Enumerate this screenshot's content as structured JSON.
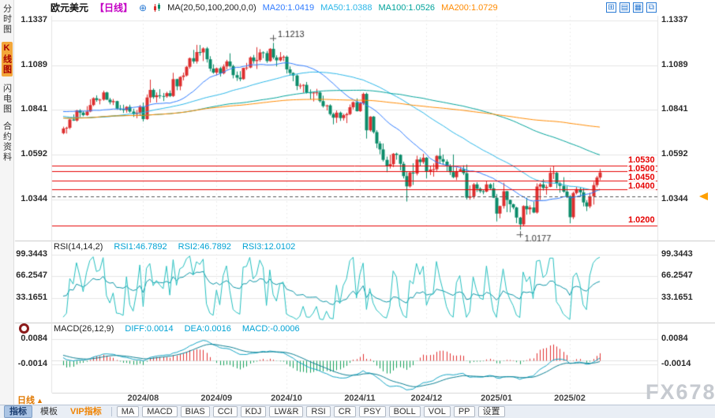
{
  "app": {
    "watermark": "FX678"
  },
  "sidebar": {
    "items": [
      {
        "label": "分时图",
        "active": false
      },
      {
        "label": "K线图",
        "active": true
      },
      {
        "label": "闪电图",
        "active": false
      },
      {
        "label": "合约资料",
        "active": false
      }
    ]
  },
  "header": {
    "symbol": "欧元美元",
    "period": "【日线】",
    "add_icon": "⊕",
    "ma_label": "MA(20,50,100,200,0,0)",
    "ma20": "MA20:1.0419",
    "ma50": "MA50:1.0388",
    "ma100": "MA100:1.0526",
    "ma200": "MA200:1.0729",
    "colors": {
      "ma20": "#2f7bff",
      "ma50": "#29b6e8",
      "ma100": "#00a39b",
      "ma200": "#ff8a00",
      "period": "#c400c4"
    }
  },
  "top_icons": [
    {
      "name": "layout-grid-icon",
      "glyph": "⊞"
    },
    {
      "name": "layout-rows-icon",
      "glyph": "▤"
    },
    {
      "name": "layout-table-icon",
      "glyph": "▦"
    },
    {
      "name": "layout-windows-icon",
      "glyph": "⧉"
    }
  ],
  "rsi_header": {
    "title": "RSI(14,14,2)",
    "rsi1": "RSI1:46.7892",
    "rsi2": "RSI2:46.7892",
    "rsi3": "RSI3:12.0102"
  },
  "macd_header": {
    "title": "MACD(26,12,9)",
    "diff": "DIFF:0.0014",
    "dea": "DEA:0.0016",
    "macd": "MACD:-0.0006"
  },
  "axes": {
    "main_ticks": [
      "1.1337",
      "1.1089",
      "1.0841",
      "1.0592",
      "1.0344"
    ],
    "rsi_ticks": [
      "99.3443",
      "66.2547",
      "33.1651"
    ],
    "macd_ticks": [
      "0.0084",
      "-0.0014"
    ]
  },
  "annotations": {
    "high": "1.1213",
    "low": "1.0177"
  },
  "levels_text": [
    "1.0530",
    "1.0500",
    "1.0450",
    "1.0400",
    "1.0200"
  ],
  "footer": {
    "period_label": "日线",
    "period_arrow": "▲",
    "tabs": [
      {
        "label": "指标",
        "active": true
      },
      {
        "label": "模板",
        "active": false
      },
      {
        "label": "VIP指标",
        "vip": true
      }
    ],
    "buttons": [
      "MA",
      "MACD",
      "BIAS",
      "CCI",
      "KDJ",
      "LW&R",
      "RSI",
      "CR",
      "PSY",
      "BOLL",
      "VOL",
      "PP",
      "设置"
    ]
  },
  "chart_data": {
    "type": "candlestick",
    "title": "欧元美元 日线 (EUR/USD Daily) with MA(20,50,100,200), RSI(14,14,2), MACD(26,12,9)",
    "y_ticks": [
      1.1337,
      1.1089,
      1.0841,
      1.0592,
      1.0344
    ],
    "rsi_ticks": [
      99.3443,
      66.2547,
      33.1651
    ],
    "macd_ticks": [
      0.0084,
      -0.0014
    ],
    "levels": [
      1.053,
      1.05,
      1.045,
      1.04,
      1.02
    ],
    "dashed_level": 1.036,
    "high_point": 1.1213,
    "low_point": 1.0177,
    "ma_periods": [
      20,
      50,
      100,
      200
    ],
    "ma_colors": [
      "#2f7bff",
      "#29b6e8",
      "#00a39b",
      "#ff8a00"
    ],
    "rsi_periods": [
      14,
      2
    ],
    "rsi_colors": [
      "#0d95a6",
      "#25bfbf"
    ],
    "macd_params": [
      26,
      12,
      9
    ],
    "macd_colors": {
      "diff": "#15a4c4",
      "dea": "#0c7f92",
      "up": "#e03030",
      "down": "#13a05a"
    },
    "candle_colors": {
      "up": "#dd2f2f",
      "down": "#0b8c6a"
    },
    "month_ticks": [
      {
        "label": "2024/08",
        "index": 24
      },
      {
        "label": "2024/09",
        "index": 46
      },
      {
        "label": "2024/10",
        "index": 67
      },
      {
        "label": "2024/11",
        "index": 89
      },
      {
        "label": "2024/12",
        "index": 109
      },
      {
        "label": "2025/01",
        "index": 130
      },
      {
        "label": "2025/02",
        "index": 152
      }
    ],
    "history_closes": [
      1.0765,
      1.0772,
      1.0788,
      1.0741,
      1.0722,
      1.0708,
      1.0716,
      1.0734,
      1.0748,
      1.0782,
      1.0818,
      1.0866,
      1.0882,
      1.087,
      1.0858,
      1.0846,
      1.0838,
      1.0852,
      1.084,
      1.0816,
      1.0885,
      1.0896,
      1.0872,
      1.086,
      1.0812,
      1.074,
      1.0735,
      1.0742,
      1.0738,
      1.073,
      1.0705,
      1.0738,
      1.0742,
      1.0736,
      1.0714,
      1.0688,
      1.0702,
      1.0696,
      1.0734,
      1.0756,
      1.0748,
      1.0752,
      1.077,
      1.0784,
      1.0802,
      1.0822,
      1.0816,
      1.0828,
      1.0846,
      1.084,
      1.0896,
      1.0902,
      1.0888,
      1.0874,
      1.0858,
      1.0842,
      1.085,
      1.0836,
      1.0848,
      1.0852
    ],
    "candles": [
      [
        1.0712,
        1.0748,
        1.0706,
        1.0738
      ],
      [
        1.0738,
        1.0748,
        1.071,
        1.0742
      ],
      [
        1.0742,
        1.0792,
        1.0734,
        1.0788
      ],
      [
        1.0788,
        1.0816,
        1.078,
        1.0782
      ],
      [
        1.0782,
        1.0842,
        1.0776,
        1.0838
      ],
      [
        1.0838,
        1.0845,
        1.0802,
        1.0826
      ],
      [
        1.0826,
        1.0834,
        1.0806,
        1.0812
      ],
      [
        1.0812,
        1.0862,
        1.0808,
        1.0832
      ],
      [
        1.0832,
        1.09,
        1.0828,
        1.0868
      ],
      [
        1.0868,
        1.0911,
        1.0862,
        1.0906
      ],
      [
        1.0906,
        1.0922,
        1.0886,
        1.0896
      ],
      [
        1.0896,
        1.0904,
        1.0872,
        1.0898
      ],
      [
        1.0898,
        1.0948,
        1.0892,
        1.0938
      ],
      [
        1.0938,
        1.0942,
        1.0896,
        1.0898
      ],
      [
        1.0898,
        1.0908,
        1.0872,
        1.0884
      ],
      [
        1.0884,
        1.0902,
        1.0868,
        1.089
      ],
      [
        1.089,
        1.0892,
        1.0842,
        1.0848
      ],
      [
        1.0848,
        1.0868,
        1.0838,
        1.0846
      ],
      [
        1.0846,
        1.087,
        1.0824,
        1.084
      ],
      [
        1.084,
        1.0862,
        1.0826,
        1.0858
      ],
      [
        1.0858,
        1.087,
        1.0825,
        1.0832
      ],
      [
        1.0832,
        1.0848,
        1.0802,
        1.0818
      ],
      [
        1.0818,
        1.084,
        1.0795,
        1.0826
      ],
      [
        1.0826,
        1.0868,
        1.081,
        1.0858
      ],
      [
        1.0858,
        1.0882,
        1.0777,
        1.079
      ],
      [
        1.079,
        1.0927,
        1.0786,
        1.091
      ],
      [
        1.091,
        1.1009,
        1.0881,
        1.0952
      ],
      [
        1.0952,
        1.096,
        1.0903,
        1.0912
      ],
      [
        1.0912,
        1.0938,
        1.0882,
        1.0922
      ],
      [
        1.0922,
        1.0956,
        1.0904,
        1.0918
      ],
      [
        1.0918,
        1.0935,
        1.089,
        1.0916
      ],
      [
        1.0916,
        1.0942,
        1.0908,
        1.0934
      ],
      [
        1.0934,
        1.0949,
        1.0912,
        1.0918
      ],
      [
        1.0918,
        1.1047,
        1.0913,
        1.1012
      ],
      [
        1.1012,
        1.1014,
        1.095,
        1.0972
      ],
      [
        1.0972,
        1.1028,
        1.095,
        1.1024
      ],
      [
        1.1024,
        1.1048,
        1.1005,
        1.1032
      ],
      [
        1.1032,
        1.1085,
        1.1026,
        1.108
      ],
      [
        1.108,
        1.1132,
        1.107,
        1.1128
      ],
      [
        1.1128,
        1.1174,
        1.1098,
        1.111
      ],
      [
        1.111,
        1.1202,
        1.1098,
        1.1162
      ],
      [
        1.1162,
        1.1201,
        1.1142,
        1.116
      ],
      [
        1.116,
        1.1188,
        1.1112,
        1.1182
      ],
      [
        1.1182,
        1.119,
        1.1104,
        1.1122
      ],
      [
        1.1122,
        1.1139,
        1.1055,
        1.107
      ],
      [
        1.107,
        1.1094,
        1.1042,
        1.1048
      ],
      [
        1.1048,
        1.1076,
        1.1034,
        1.1072
      ],
      [
        1.1072,
        1.108,
        1.1026,
        1.1044
      ],
      [
        1.1044,
        1.1094,
        1.1038,
        1.1082
      ],
      [
        1.1082,
        1.1119,
        1.1065,
        1.111
      ],
      [
        1.111,
        1.1155,
        1.1076,
        1.1084
      ],
      [
        1.1084,
        1.1092,
        1.1016,
        1.1034
      ],
      [
        1.1034,
        1.1054,
        1.1002,
        1.102
      ],
      [
        1.102,
        1.1056,
        1.1,
        1.1012
      ],
      [
        1.1012,
        1.1075,
        1.1008,
        1.1074
      ],
      [
        1.1074,
        1.1102,
        1.1062,
        1.1076
      ],
      [
        1.1076,
        1.1138,
        1.1072,
        1.1132
      ],
      [
        1.1132,
        1.1146,
        1.1098,
        1.1112
      ],
      [
        1.1112,
        1.1189,
        1.1068,
        1.1118
      ],
      [
        1.1118,
        1.1178,
        1.1108,
        1.116
      ],
      [
        1.116,
        1.1166,
        1.1128,
        1.1156
      ],
      [
        1.1156,
        1.1168,
        1.1102,
        1.1112
      ],
      [
        1.1112,
        1.1184,
        1.1108,
        1.118
      ],
      [
        1.118,
        1.1213,
        1.1122,
        1.1132
      ],
      [
        1.1132,
        1.1144,
        1.1082,
        1.1116
      ],
      [
        1.1116,
        1.1162,
        1.111,
        1.1134
      ],
      [
        1.1134,
        1.1144,
        1.1112,
        1.1136
      ],
      [
        1.1136,
        1.1143,
        1.1043,
        1.1066
      ],
      [
        1.1066,
        1.1082,
        1.1032,
        1.1046
      ],
      [
        1.1046,
        1.105,
        1.1,
        1.1032
      ],
      [
        1.1032,
        1.1038,
        1.0951,
        1.0974
      ],
      [
        1.0974,
        1.0988,
        1.0958,
        1.0976
      ],
      [
        1.0976,
        1.0984,
        1.0936,
        1.098
      ],
      [
        1.098,
        1.0996,
        1.0932,
        1.0938
      ],
      [
        1.0938,
        1.0955,
        1.09,
        1.0936
      ],
      [
        1.0936,
        1.0942,
        1.0888,
        1.0937
      ],
      [
        1.0937,
        1.0958,
        1.092,
        1.0938
      ],
      [
        1.0938,
        1.0944,
        1.0882,
        1.089
      ],
      [
        1.089,
        1.092,
        1.0854,
        1.0862
      ],
      [
        1.0862,
        1.087,
        1.0838,
        1.0866
      ],
      [
        1.0866,
        1.0872,
        1.081,
        1.0818
      ],
      [
        1.0818,
        1.0826,
        1.0761,
        1.0798
      ],
      [
        1.0798,
        1.0838,
        1.0769,
        1.0826
      ],
      [
        1.0826,
        1.0832,
        1.078,
        1.0796
      ],
      [
        1.0796,
        1.082,
        1.0782,
        1.0812
      ],
      [
        1.0812,
        1.0826,
        1.0768,
        1.0818
      ],
      [
        1.0818,
        1.0871,
        1.0812,
        1.0856
      ],
      [
        1.0856,
        1.0888,
        1.0844,
        1.0884
      ],
      [
        1.0884,
        1.0905,
        1.0832,
        1.0834
      ],
      [
        1.0834,
        1.0886,
        1.083,
        1.0878
      ],
      [
        1.0878,
        1.0937,
        1.0868,
        1.093
      ],
      [
        1.093,
        1.0937,
        1.0682,
        1.0728
      ],
      [
        1.0728,
        1.0806,
        1.0721,
        1.0804
      ],
      [
        1.0804,
        1.0807,
        1.071,
        1.0718
      ],
      [
        1.0718,
        1.0728,
        1.0629,
        1.0655
      ],
      [
        1.0655,
        1.0667,
        1.0595,
        1.0622
      ],
      [
        1.0622,
        1.0655,
        1.0555,
        1.0564
      ],
      [
        1.0564,
        1.0582,
        1.0496,
        1.053
      ],
      [
        1.053,
        1.0592,
        1.0516,
        1.054
      ],
      [
        1.054,
        1.0602,
        1.0524,
        1.0598
      ],
      [
        1.0598,
        1.0604,
        1.0565,
        1.0592
      ],
      [
        1.0592,
        1.0595,
        1.0506,
        1.0542
      ],
      [
        1.0542,
        1.0554,
        1.0461,
        1.0474
      ],
      [
        1.0474,
        1.05,
        1.0333,
        1.0417
      ],
      [
        1.0417,
        1.05,
        1.041,
        1.0494
      ],
      [
        1.0494,
        1.0545,
        1.0425,
        1.0488
      ],
      [
        1.0488,
        1.0587,
        1.0478,
        1.0566
      ],
      [
        1.0566,
        1.0578,
        1.053,
        1.0552
      ],
      [
        1.0552,
        1.0598,
        1.0542,
        1.0576
      ],
      [
        1.0576,
        1.058,
        1.0461,
        1.0498
      ],
      [
        1.0498,
        1.0532,
        1.048,
        1.051
      ],
      [
        1.051,
        1.0544,
        1.0471,
        1.0512
      ],
      [
        1.0512,
        1.059,
        1.0502,
        1.0586
      ],
      [
        1.0586,
        1.0629,
        1.0541,
        1.0568
      ],
      [
        1.0568,
        1.0594,
        1.0536,
        1.0554
      ],
      [
        1.0554,
        1.0566,
        1.0499,
        1.0528
      ],
      [
        1.0528,
        1.054,
        1.048,
        1.0496
      ],
      [
        1.0496,
        1.0594,
        1.0462,
        1.0468
      ],
      [
        1.0468,
        1.0522,
        1.0452,
        1.0502
      ],
      [
        1.0502,
        1.0525,
        1.0498,
        1.0512
      ],
      [
        1.0512,
        1.0534,
        1.048,
        1.049
      ],
      [
        1.049,
        1.0538,
        1.0344,
        1.0354
      ],
      [
        1.0354,
        1.0422,
        1.0343,
        1.0362
      ],
      [
        1.0362,
        1.0436,
        1.0348,
        1.0428
      ],
      [
        1.0428,
        1.044,
        1.0386,
        1.0404
      ],
      [
        1.0404,
        1.0412,
        1.038,
        1.039
      ],
      [
        1.039,
        1.0398,
        1.0373,
        1.0388
      ],
      [
        1.0388,
        1.0446,
        1.0384,
        1.0428
      ],
      [
        1.0428,
        1.0434,
        1.0396,
        1.0406
      ],
      [
        1.0406,
        1.0437,
        1.0352,
        1.0354
      ],
      [
        1.0354,
        1.0374,
        1.0223,
        1.0266
      ],
      [
        1.0266,
        1.031,
        1.024,
        1.0308
      ],
      [
        1.0308,
        1.0437,
        1.0294,
        1.039
      ],
      [
        1.039,
        1.0392,
        1.0274,
        1.0342
      ],
      [
        1.0342,
        1.0344,
        1.0273,
        1.0318
      ],
      [
        1.0318,
        1.0321,
        1.029,
        1.03
      ],
      [
        1.03,
        1.0304,
        1.0213,
        1.0244
      ],
      [
        1.0244,
        1.0248,
        1.0177,
        1.0206
      ],
      [
        1.0206,
        1.0312,
        1.0196,
        1.0308
      ],
      [
        1.0308,
        1.0354,
        1.026,
        1.029
      ],
      [
        1.029,
        1.0312,
        1.0262,
        1.03
      ],
      [
        1.03,
        1.0332,
        1.0268,
        1.0272
      ],
      [
        1.0272,
        1.0434,
        1.0266,
        1.0416
      ],
      [
        1.0416,
        1.0436,
        1.0342,
        1.0428
      ],
      [
        1.0428,
        1.0457,
        1.0394,
        1.0408
      ],
      [
        1.0408,
        1.0426,
        1.0371,
        1.0414
      ],
      [
        1.0414,
        1.0521,
        1.0412,
        1.0492
      ],
      [
        1.0492,
        1.0532,
        1.0458,
        1.0492
      ],
      [
        1.0492,
        1.0498,
        1.0406,
        1.0434
      ],
      [
        1.0434,
        1.0442,
        1.0382,
        1.042
      ],
      [
        1.042,
        1.0468,
        1.0382,
        1.0388
      ],
      [
        1.0388,
        1.0418,
        1.0352,
        1.0362
      ],
      [
        1.0362,
        1.0368,
        1.0212,
        1.0246
      ],
      [
        1.0246,
        1.0388,
        1.0236,
        1.038
      ],
      [
        1.038,
        1.0414,
        1.0372,
        1.0402
      ],
      [
        1.0402,
        1.041,
        1.0358,
        1.0384
      ],
      [
        1.0384,
        1.041,
        1.0306,
        1.0328
      ],
      [
        1.0328,
        1.034,
        1.028,
        1.0306
      ],
      [
        1.0306,
        1.0382,
        1.0296,
        1.0362
      ],
      [
        1.0362,
        1.0442,
        1.0316,
        1.0424
      ],
      [
        1.0424,
        1.0475,
        1.0412,
        1.0466
      ],
      [
        1.0466,
        1.0514,
        1.0452,
        1.0494
      ]
    ]
  }
}
